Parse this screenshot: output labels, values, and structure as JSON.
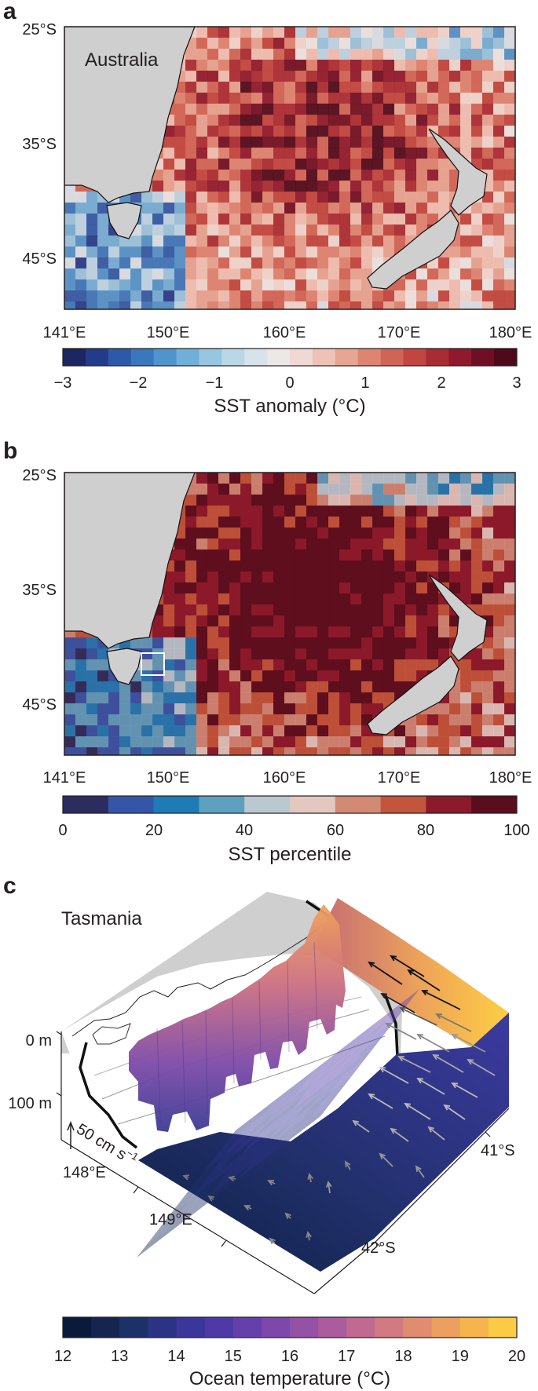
{
  "chart_data": [
    {
      "type": "heatmap",
      "panel_label": "a",
      "map_label": "Australia",
      "lat_ticks": [
        "25°S",
        "35°S",
        "45°S"
      ],
      "lon_ticks": [
        "141°E",
        "150°E",
        "160°E",
        "170°E",
        "180°E"
      ],
      "lon_range": [
        141,
        180
      ],
      "lat_range": [
        25,
        49
      ],
      "colorbar": {
        "label": "SST anomaly (°C)",
        "ticks": [
          "−3",
          "−2",
          "−1",
          "0",
          "1",
          "2",
          "3"
        ],
        "range": [
          -3,
          3
        ]
      }
    },
    {
      "type": "heatmap",
      "panel_label": "b",
      "lat_ticks": [
        "25°S",
        "35°S",
        "45°S"
      ],
      "lon_ticks": [
        "141°E",
        "150°E",
        "160°E",
        "170°E",
        "180°E"
      ],
      "lon_range": [
        141,
        180
      ],
      "lat_range": [
        25,
        49
      ],
      "colorbar": {
        "label": "SST percentile",
        "ticks": [
          "0",
          "20",
          "40",
          "60",
          "80",
          "100"
        ],
        "range": [
          0,
          100
        ]
      }
    },
    {
      "type": "heatmap",
      "panel_label": "c",
      "map_label": "Tasmania",
      "depth_ticks": [
        "0 m",
        "100 m"
      ],
      "lon_ticks": [
        "148°E",
        "149°E"
      ],
      "lat_ticks": [
        "41°S",
        "42°S"
      ],
      "scale_label": "50 cm s",
      "scale_exponent": "−1",
      "colorbar": {
        "label": "Ocean temperature (°C)",
        "ticks": [
          "12",
          "13",
          "14",
          "15",
          "16",
          "17",
          "18",
          "19",
          "20"
        ],
        "range": [
          12,
          20
        ]
      }
    }
  ],
  "colors": {
    "land": "#cfcfcf",
    "anomaly_scale": [
      "#1c2660",
      "#233c8a",
      "#2d5aa7",
      "#3a77bd",
      "#4f95cc",
      "#70afd8",
      "#97c6e1",
      "#bad7e8",
      "#d7e3ea",
      "#ece8e6",
      "#f0d9d2",
      "#eec2b4",
      "#e7a592",
      "#dd8571",
      "#d06555",
      "#c0463f",
      "#a82c33",
      "#8e1a2c",
      "#6f0f24",
      "#4e0a1a"
    ],
    "percentile_scale": [
      "#2b2d5e",
      "#3556a8",
      "#1f7bb5",
      "#5ea0bf",
      "#b9c9d0",
      "#e2c8bf",
      "#d38a75",
      "#c2553b",
      "#8b1a2a",
      "#5a0d1c"
    ],
    "temperature_scale": [
      "#0a1a3a",
      "#14264f",
      "#1e3068",
      "#2a3482",
      "#3a369a",
      "#4d3aa6",
      "#6540ab",
      "#7d48aa",
      "#9451a5",
      "#aa5c9e",
      "#c06a92",
      "#d27a82",
      "#e08c70",
      "#ec9f5e",
      "#f5b44c",
      "#fbcb45"
    ]
  }
}
